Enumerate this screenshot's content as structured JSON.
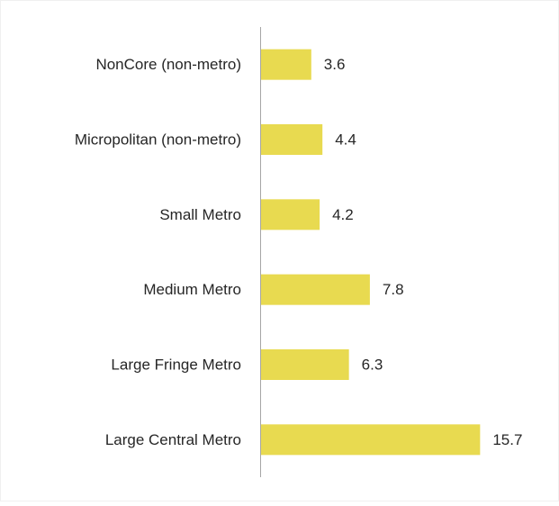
{
  "chart_data": {
    "type": "bar",
    "orientation": "horizontal",
    "color": "#e8da50",
    "categories": [
      "NonCore (non-metro)",
      "Micropolitan (non-metro)",
      "Small Metro",
      "Medium Metro",
      "Large Fringe Metro",
      "Large Central Metro"
    ],
    "values": [
      3.6,
      4.4,
      4.2,
      7.8,
      6.3,
      15.7
    ]
  }
}
